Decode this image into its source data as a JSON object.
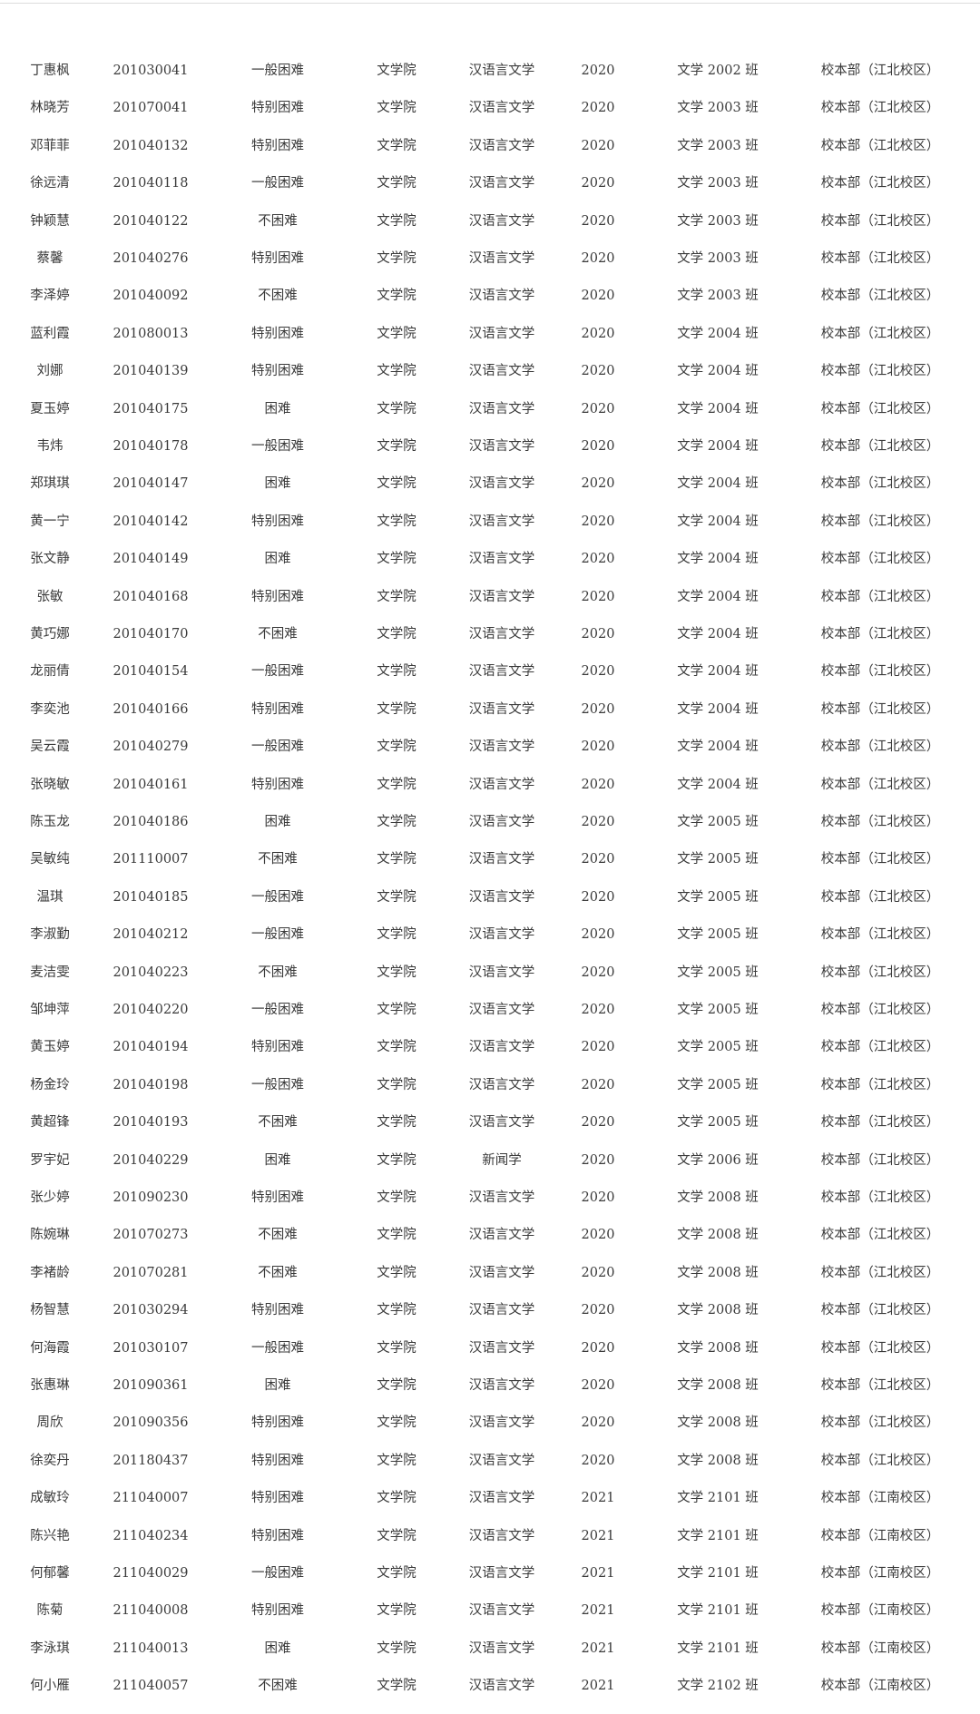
{
  "rows": [
    [
      "丁惠枫",
      "201030041",
      "一般困难",
      "文学院",
      "汉语言文学",
      "2020",
      "文学 2002 班",
      "校本部（江北校区）"
    ],
    [
      "林晓芳",
      "201070041",
      "特别困难",
      "文学院",
      "汉语言文学",
      "2020",
      "文学 2003 班",
      "校本部（江北校区）"
    ],
    [
      "邓菲菲",
      "201040132",
      "特别困难",
      "文学院",
      "汉语言文学",
      "2020",
      "文学 2003 班",
      "校本部（江北校区）"
    ],
    [
      "徐远清",
      "201040118",
      "一般困难",
      "文学院",
      "汉语言文学",
      "2020",
      "文学 2003 班",
      "校本部（江北校区）"
    ],
    [
      "钟颖慧",
      "201040122",
      "不困难",
      "文学院",
      "汉语言文学",
      "2020",
      "文学 2003 班",
      "校本部（江北校区）"
    ],
    [
      "蔡馨",
      "201040276",
      "特别困难",
      "文学院",
      "汉语言文学",
      "2020",
      "文学 2003 班",
      "校本部（江北校区）"
    ],
    [
      "李泽婷",
      "201040092",
      "不困难",
      "文学院",
      "汉语言文学",
      "2020",
      "文学 2003 班",
      "校本部（江北校区）"
    ],
    [
      "蓝利霞",
      "201080013",
      "特别困难",
      "文学院",
      "汉语言文学",
      "2020",
      "文学 2004 班",
      "校本部（江北校区）"
    ],
    [
      "刘娜",
      "201040139",
      "特别困难",
      "文学院",
      "汉语言文学",
      "2020",
      "文学 2004 班",
      "校本部（江北校区）"
    ],
    [
      "夏玉婷",
      "201040175",
      "困难",
      "文学院",
      "汉语言文学",
      "2020",
      "文学 2004 班",
      "校本部（江北校区）"
    ],
    [
      "韦炜",
      "201040178",
      "一般困难",
      "文学院",
      "汉语言文学",
      "2020",
      "文学 2004 班",
      "校本部（江北校区）"
    ],
    [
      "郑琪琪",
      "201040147",
      "困难",
      "文学院",
      "汉语言文学",
      "2020",
      "文学 2004 班",
      "校本部（江北校区）"
    ],
    [
      "黄一宁",
      "201040142",
      "特别困难",
      "文学院",
      "汉语言文学",
      "2020",
      "文学 2004 班",
      "校本部（江北校区）"
    ],
    [
      "张文静",
      "201040149",
      "困难",
      "文学院",
      "汉语言文学",
      "2020",
      "文学 2004 班",
      "校本部（江北校区）"
    ],
    [
      "张敏",
      "201040168",
      "特别困难",
      "文学院",
      "汉语言文学",
      "2020",
      "文学 2004 班",
      "校本部（江北校区）"
    ],
    [
      "黄巧娜",
      "201040170",
      "不困难",
      "文学院",
      "汉语言文学",
      "2020",
      "文学 2004 班",
      "校本部（江北校区）"
    ],
    [
      "龙丽倩",
      "201040154",
      "一般困难",
      "文学院",
      "汉语言文学",
      "2020",
      "文学 2004 班",
      "校本部（江北校区）"
    ],
    [
      "李奕池",
      "201040166",
      "特别困难",
      "文学院",
      "汉语言文学",
      "2020",
      "文学 2004 班",
      "校本部（江北校区）"
    ],
    [
      "吴云霞",
      "201040279",
      "一般困难",
      "文学院",
      "汉语言文学",
      "2020",
      "文学 2004 班",
      "校本部（江北校区）"
    ],
    [
      "张晓敏",
      "201040161",
      "特别困难",
      "文学院",
      "汉语言文学",
      "2020",
      "文学 2004 班",
      "校本部（江北校区）"
    ],
    [
      "陈玉龙",
      "201040186",
      "困难",
      "文学院",
      "汉语言文学",
      "2020",
      "文学 2005 班",
      "校本部（江北校区）"
    ],
    [
      "吴敏纯",
      "201110007",
      "不困难",
      "文学院",
      "汉语言文学",
      "2020",
      "文学 2005 班",
      "校本部（江北校区）"
    ],
    [
      "温琪",
      "201040185",
      "一般困难",
      "文学院",
      "汉语言文学",
      "2020",
      "文学 2005 班",
      "校本部（江北校区）"
    ],
    [
      "李淑勤",
      "201040212",
      "一般困难",
      "文学院",
      "汉语言文学",
      "2020",
      "文学 2005 班",
      "校本部（江北校区）"
    ],
    [
      "麦洁雯",
      "201040223",
      "不困难",
      "文学院",
      "汉语言文学",
      "2020",
      "文学 2005 班",
      "校本部（江北校区）"
    ],
    [
      "邹坤萍",
      "201040220",
      "一般困难",
      "文学院",
      "汉语言文学",
      "2020",
      "文学 2005 班",
      "校本部（江北校区）"
    ],
    [
      "黄玉婷",
      "201040194",
      "特别困难",
      "文学院",
      "汉语言文学",
      "2020",
      "文学 2005 班",
      "校本部（江北校区）"
    ],
    [
      "杨金玲",
      "201040198",
      "一般困难",
      "文学院",
      "汉语言文学",
      "2020",
      "文学 2005 班",
      "校本部（江北校区）"
    ],
    [
      "黄超锋",
      "201040193",
      "不困难",
      "文学院",
      "汉语言文学",
      "2020",
      "文学 2005 班",
      "校本部（江北校区）"
    ],
    [
      "罗宇妃",
      "201040229",
      "困难",
      "文学院",
      "新闻学",
      "2020",
      "文学 2006 班",
      "校本部（江北校区）"
    ],
    [
      "张少婷",
      "201090230",
      "特别困难",
      "文学院",
      "汉语言文学",
      "2020",
      "文学 2008 班",
      "校本部（江北校区）"
    ],
    [
      "陈婉琳",
      "201070273",
      "不困难",
      "文学院",
      "汉语言文学",
      "2020",
      "文学 2008 班",
      "校本部（江北校区）"
    ],
    [
      "李褚龄",
      "201070281",
      "不困难",
      "文学院",
      "汉语言文学",
      "2020",
      "文学 2008 班",
      "校本部（江北校区）"
    ],
    [
      "杨智慧",
      "201030294",
      "特别困难",
      "文学院",
      "汉语言文学",
      "2020",
      "文学 2008 班",
      "校本部（江北校区）"
    ],
    [
      "何海霞",
      "201030107",
      "一般困难",
      "文学院",
      "汉语言文学",
      "2020",
      "文学 2008 班",
      "校本部（江北校区）"
    ],
    [
      "张惠琳",
      "201090361",
      "困难",
      "文学院",
      "汉语言文学",
      "2020",
      "文学 2008 班",
      "校本部（江北校区）"
    ],
    [
      "周欣",
      "201090356",
      "特别困难",
      "文学院",
      "汉语言文学",
      "2020",
      "文学 2008 班",
      "校本部（江北校区）"
    ],
    [
      "徐奕丹",
      "201180437",
      "特别困难",
      "文学院",
      "汉语言文学",
      "2020",
      "文学 2008 班",
      "校本部（江北校区）"
    ],
    [
      "成敏玲",
      "211040007",
      "特别困难",
      "文学院",
      "汉语言文学",
      "2021",
      "文学 2101 班",
      "校本部（江南校区）"
    ],
    [
      "陈兴艳",
      "211040234",
      "特别困难",
      "文学院",
      "汉语言文学",
      "2021",
      "文学 2101 班",
      "校本部（江南校区）"
    ],
    [
      "何郁馨",
      "211040029",
      "一般困难",
      "文学院",
      "汉语言文学",
      "2021",
      "文学 2101 班",
      "校本部（江南校区）"
    ],
    [
      "陈菊",
      "211040008",
      "特别困难",
      "文学院",
      "汉语言文学",
      "2021",
      "文学 2101 班",
      "校本部（江南校区）"
    ],
    [
      "李泳琪",
      "211040013",
      "困难",
      "文学院",
      "汉语言文学",
      "2021",
      "文学 2101 班",
      "校本部（江南校区）"
    ],
    [
      "何小雁",
      "211040057",
      "不困难",
      "文学院",
      "汉语言文学",
      "2021",
      "文学 2102 班",
      "校本部（江南校区）"
    ]
  ]
}
